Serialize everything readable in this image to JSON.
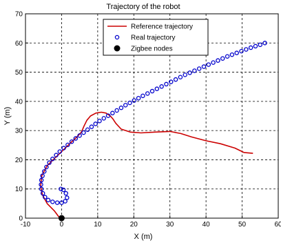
{
  "chart_data": {
    "type": "line",
    "title": "Trajectory of the robot",
    "xlabel": "X (m)",
    "ylabel": "Y (m)",
    "xlim": [
      -10,
      60
    ],
    "ylim": [
      0,
      70
    ],
    "xticks": [
      -10,
      0,
      10,
      20,
      30,
      40,
      50,
      60
    ],
    "yticks": [
      0,
      10,
      20,
      30,
      40,
      50,
      60,
      70
    ],
    "grid": true,
    "legend_position": "top-center",
    "legend": [
      {
        "label": "Reference trajectory",
        "style": "red-line"
      },
      {
        "label": "Real trajectory",
        "style": "blue-circle"
      },
      {
        "label": "Zigbee nodes",
        "style": "black-dot"
      }
    ],
    "series": [
      {
        "name": "Reference trajectory",
        "color": "#cc0000",
        "marker": "none",
        "points": [
          [
            -0.5,
            0
          ],
          [
            -2,
            2.5
          ],
          [
            -4,
            5
          ],
          [
            -5.3,
            8
          ],
          [
            -5.8,
            11
          ],
          [
            -5.5,
            14.5
          ],
          [
            -4,
            18
          ],
          [
            -1.5,
            21
          ],
          [
            1,
            24
          ],
          [
            2.5,
            25.8
          ],
          [
            4,
            27.5
          ],
          [
            5.5,
            29.5
          ],
          [
            6.2,
            31.5
          ],
          [
            7,
            33.5
          ],
          [
            8,
            35
          ],
          [
            9.5,
            36
          ],
          [
            11,
            36.3
          ],
          [
            12.3,
            36
          ],
          [
            13.5,
            35
          ],
          [
            14.2,
            34
          ],
          [
            15,
            32.5
          ],
          [
            16.5,
            30.5
          ],
          [
            19,
            29.5
          ],
          [
            22,
            29.2
          ],
          [
            26,
            29.5
          ],
          [
            30,
            29.7
          ],
          [
            33,
            29
          ],
          [
            36,
            27.8
          ],
          [
            40,
            26.5
          ],
          [
            44,
            25.5
          ],
          [
            48,
            24
          ],
          [
            50.5,
            22.5
          ],
          [
            53,
            22.2
          ]
        ]
      },
      {
        "name": "Real trajectory",
        "color": "#0000cc",
        "marker": "circle",
        "points": [
          [
            -0.2,
            10
          ],
          [
            0.5,
            9.7
          ],
          [
            1.2,
            8.5
          ],
          [
            1.5,
            7
          ],
          [
            1,
            5.8
          ],
          [
            0,
            5.3
          ],
          [
            -1.2,
            5.3
          ],
          [
            -2.5,
            5.6
          ],
          [
            -3.7,
            6.2
          ],
          [
            -4.6,
            7.2
          ],
          [
            -5.2,
            8.5
          ],
          [
            -5.6,
            10
          ],
          [
            -5.7,
            11.5
          ],
          [
            -5.6,
            13
          ],
          [
            -5.3,
            14.5
          ],
          [
            -4.8,
            16
          ],
          [
            -4.2,
            17.5
          ],
          [
            -3.4,
            19
          ],
          [
            -2.5,
            20.3
          ],
          [
            -1.5,
            21.6
          ],
          [
            -0.5,
            22.8
          ],
          [
            0.6,
            24
          ],
          [
            1.7,
            25.1
          ],
          [
            2.8,
            26.2
          ],
          [
            3.9,
            27.3
          ],
          [
            5,
            28.3
          ],
          [
            6.1,
            29.3
          ],
          [
            7.2,
            30.3
          ],
          [
            8.3,
            31.3
          ],
          [
            9.4,
            32.3
          ],
          [
            10.5,
            33.3
          ],
          [
            11.7,
            34.2
          ],
          [
            12.9,
            35.1
          ],
          [
            14.1,
            36
          ],
          [
            15.3,
            36.9
          ],
          [
            16.5,
            37.8
          ],
          [
            17.7,
            38.7
          ],
          [
            18.9,
            39.5
          ],
          [
            20.1,
            40.3
          ],
          [
            21.3,
            41.1
          ],
          [
            22.5,
            41.9
          ],
          [
            23.8,
            42.7
          ],
          [
            25.1,
            43.5
          ],
          [
            26.4,
            44.3
          ],
          [
            27.7,
            45.1
          ],
          [
            29,
            45.9
          ],
          [
            30.3,
            46.7
          ],
          [
            31.6,
            47.5
          ],
          [
            32.9,
            48.3
          ],
          [
            34.2,
            49.1
          ],
          [
            35.5,
            49.8
          ],
          [
            36.8,
            50.5
          ],
          [
            38.1,
            51.2
          ],
          [
            39.4,
            51.9
          ],
          [
            40.7,
            52.6
          ],
          [
            42,
            53.3
          ],
          [
            43.3,
            54
          ],
          [
            44.6,
            54.7
          ],
          [
            45.9,
            55.4
          ],
          [
            47.2,
            56
          ],
          [
            48.5,
            56.6
          ],
          [
            49.8,
            57.2
          ],
          [
            51.1,
            57.8
          ],
          [
            52.4,
            58.4
          ],
          [
            53.7,
            58.9
          ],
          [
            55,
            59.4
          ],
          [
            56.3,
            60
          ]
        ]
      },
      {
        "name": "Zigbee nodes",
        "color": "#000000",
        "marker": "filled-circle",
        "points": [
          [
            0,
            0
          ]
        ]
      }
    ]
  }
}
